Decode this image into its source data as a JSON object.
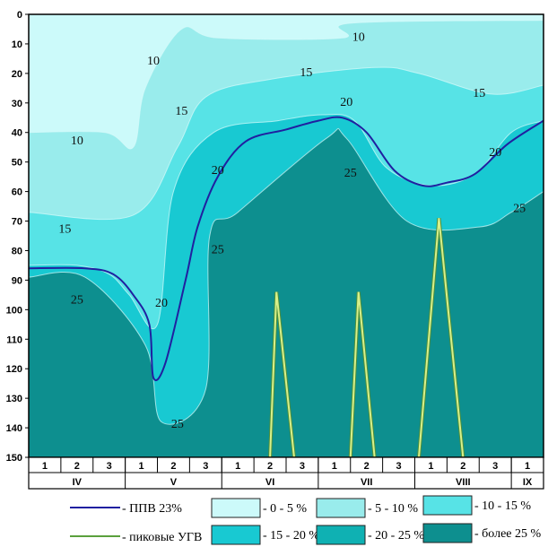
{
  "chart_data": {
    "type": "contour",
    "y_axis": {
      "range": [
        0,
        150
      ],
      "inverted": true,
      "ticks": [
        0,
        10,
        20,
        30,
        40,
        50,
        60,
        70,
        80,
        90,
        100,
        110,
        120,
        130,
        140,
        150
      ]
    },
    "x_axis": {
      "decade_labels": [
        "1",
        "2",
        "3",
        "1",
        "2",
        "3",
        "1",
        "2",
        "3",
        "1",
        "2",
        "3",
        "1",
        "2",
        "3",
        "1"
      ],
      "month_labels": [
        "IV",
        "V",
        "VI",
        "VII",
        "VIII",
        "IX"
      ]
    },
    "zone_colors": {
      "0-5": "#ccfafa",
      "5-10": "#99ecec",
      "10-15": "#57e3e6",
      "15-20": "#18c9d2",
      "20-25": "#0fb1b3",
      "25+": "#0d8f8f"
    },
    "contours": [
      {
        "level": 10,
        "points": [
          [
            0,
            40
          ],
          [
            0.95,
            40
          ],
          [
            1.3,
            45
          ],
          [
            1.45,
            25
          ],
          [
            1.9,
            5
          ],
          [
            2.35,
            8
          ],
          [
            3.9,
            8
          ],
          [
            4.0,
            3
          ],
          [
            6.4,
            2
          ]
        ]
      },
      {
        "level": 15,
        "points": [
          [
            0,
            67
          ],
          [
            1.3,
            68
          ],
          [
            1.85,
            45
          ],
          [
            2.2,
            28
          ],
          [
            3.0,
            22
          ],
          [
            4.3,
            18
          ],
          [
            4.85,
            20
          ],
          [
            5.75,
            27
          ],
          [
            6.4,
            24
          ]
        ]
      },
      {
        "level": 20,
        "points": [
          [
            0,
            85
          ],
          [
            0.6,
            85
          ],
          [
            1.0,
            88
          ],
          [
            1.25,
            95
          ],
          [
            1.6,
            105
          ],
          [
            1.8,
            60
          ],
          [
            2.3,
            40
          ],
          [
            3.1,
            36
          ],
          [
            3.65,
            34
          ],
          [
            4.05,
            36
          ],
          [
            4.45,
            52
          ],
          [
            5.0,
            58
          ],
          [
            5.55,
            54
          ],
          [
            6.0,
            40
          ],
          [
            6.4,
            36
          ]
        ]
      },
      {
        "level": 25,
        "points": [
          [
            0,
            89
          ],
          [
            0.7,
            89
          ],
          [
            1.45,
            112
          ],
          [
            1.65,
            138
          ],
          [
            2.2,
            127
          ],
          [
            2.25,
            75
          ],
          [
            2.6,
            67
          ],
          [
            3.7,
            42
          ],
          [
            3.95,
            42
          ],
          [
            4.7,
            70
          ],
          [
            5.6,
            72
          ],
          [
            6.0,
            67
          ],
          [
            6.4,
            60
          ]
        ]
      }
    ],
    "contour_labels": [
      {
        "text": "10",
        "x": 4.1,
        "y": 8
      },
      {
        "text": "10",
        "x": 1.55,
        "y": 16
      },
      {
        "text": "10",
        "x": 0.6,
        "y": 43
      },
      {
        "text": "15",
        "x": 3.45,
        "y": 20
      },
      {
        "text": "15",
        "x": 1.9,
        "y": 33
      },
      {
        "text": "15",
        "x": 5.6,
        "y": 27
      },
      {
        "text": "15",
        "x": 0.45,
        "y": 73
      },
      {
        "text": "20",
        "x": 3.95,
        "y": 30
      },
      {
        "text": "20",
        "x": 2.35,
        "y": 53
      },
      {
        "text": "20",
        "x": 5.8,
        "y": 47
      },
      {
        "text": "20",
        "x": 1.65,
        "y": 98
      },
      {
        "text": "25",
        "x": 4.0,
        "y": 54
      },
      {
        "text": "25",
        "x": 2.35,
        "y": 80
      },
      {
        "text": "25",
        "x": 6.1,
        "y": 66
      },
      {
        "text": "25",
        "x": 0.6,
        "y": 97
      },
      {
        "text": "25",
        "x": 1.85,
        "y": 139
      }
    ],
    "series": [
      {
        "name": "ППВ 23%",
        "color": "#2020a0",
        "points": [
          [
            0,
            86
          ],
          [
            0.7,
            86
          ],
          [
            1.05,
            88
          ],
          [
            1.3,
            95
          ],
          [
            1.5,
            105
          ],
          [
            1.55,
            123
          ],
          [
            1.7,
            118
          ],
          [
            1.95,
            90
          ],
          [
            2.1,
            72
          ],
          [
            2.35,
            55
          ],
          [
            2.7,
            43
          ],
          [
            3.2,
            39
          ],
          [
            3.6,
            36
          ],
          [
            3.9,
            35
          ],
          [
            4.2,
            40
          ],
          [
            4.55,
            53
          ],
          [
            4.9,
            58
          ],
          [
            5.2,
            57
          ],
          [
            5.55,
            54
          ],
          [
            5.95,
            44
          ],
          [
            6.4,
            36
          ]
        ]
      },
      {
        "name": "пиковые УГВ",
        "color": "#d7f08a",
        "peaks": [
          {
            "base": [
              3.0,
              3.3
            ],
            "top": [
              3.08,
              94
            ]
          },
          {
            "base": [
              4.0,
              4.3
            ],
            "top": [
              4.1,
              94
            ]
          },
          {
            "base": [
              4.85,
              5.4
            ],
            "top": [
              5.1,
              69
            ]
          }
        ]
      }
    ]
  },
  "legend": {
    "line_items": [
      {
        "label": "- ППВ 23%",
        "color": "#2020a0"
      },
      {
        "label": "- пиковые УГВ",
        "color": "#5aa03c"
      }
    ],
    "zones": [
      {
        "label": "- 0 - 5 %",
        "color": "#ccfafa"
      },
      {
        "label": "- 5 - 10 %",
        "color": "#99ecec"
      },
      {
        "label": "- 10 - 15 %",
        "color": "#57e3e6"
      },
      {
        "label": "- 15 - 20 %",
        "color": "#18c9d2"
      },
      {
        "label": "- 20 - 25 %",
        "color": "#0fb1b3"
      },
      {
        "label": "- более 25 %",
        "color": "#0d8f8f"
      }
    ]
  }
}
